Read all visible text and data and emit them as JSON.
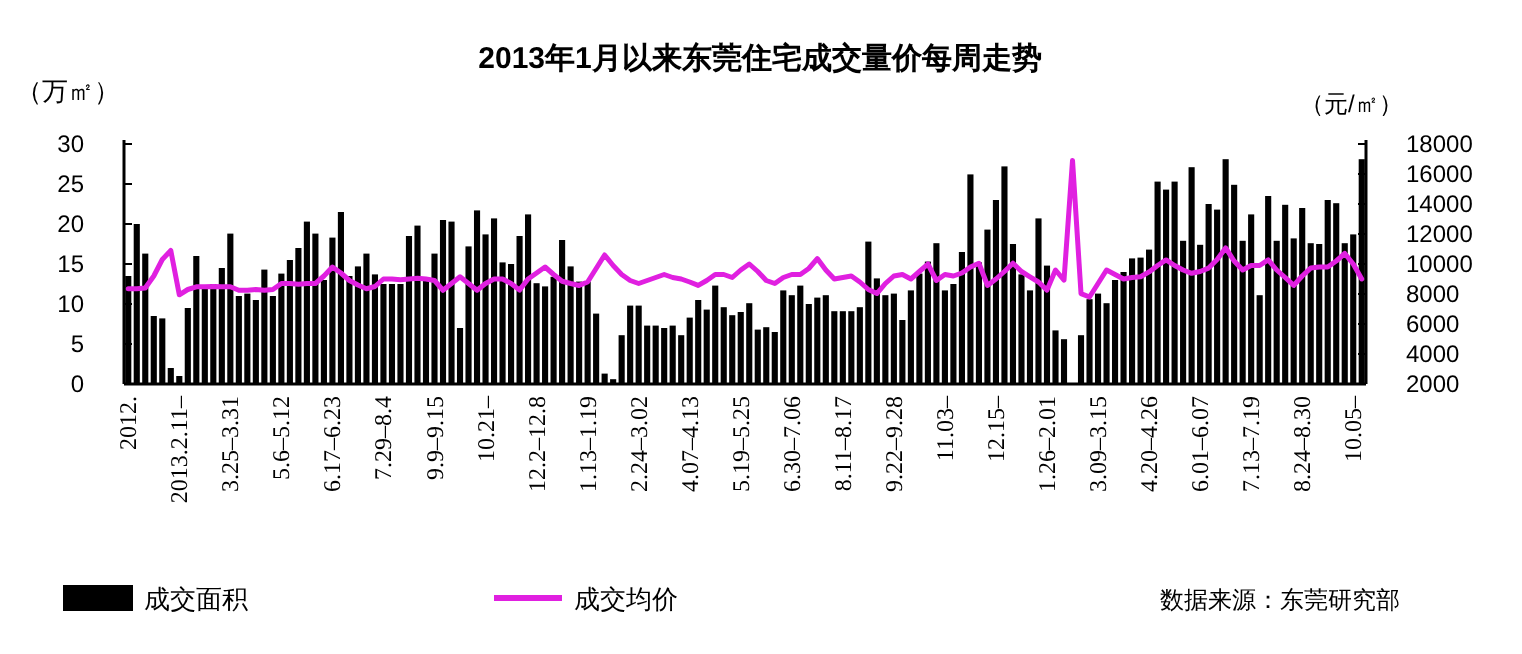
{
  "chart_data": {
    "type": "bar",
    "title": "2013年1月以来东莞住宅成交量价每周走势",
    "ylabel": "（万㎡）",
    "y2label": "（元/㎡）",
    "categories": [
      "2012.",
      null,
      null,
      null,
      null,
      null,
      "2013.2.11–",
      null,
      null,
      null,
      null,
      null,
      "3.25–3.31",
      null,
      null,
      null,
      null,
      null,
      "5.6–5.12",
      null,
      null,
      null,
      null,
      null,
      "6.17–6.23",
      null,
      null,
      null,
      null,
      null,
      "7.29–8.4",
      null,
      null,
      null,
      null,
      null,
      "9.9–9.15",
      null,
      null,
      null,
      null,
      null,
      "10.21–",
      null,
      null,
      null,
      null,
      null,
      "12.2–12.8",
      null,
      null,
      null,
      null,
      null,
      "1.13–1.19",
      null,
      null,
      null,
      null,
      null,
      "2.24–3.02",
      null,
      null,
      null,
      null,
      null,
      "4.07–4.13",
      null,
      null,
      null,
      null,
      null,
      "5.19–5.25",
      null,
      null,
      null,
      null,
      null,
      "6.30–7.06",
      null,
      null,
      null,
      null,
      null,
      "8.11–8.17",
      null,
      null,
      null,
      null,
      null,
      "9.22–9.28",
      null,
      null,
      null,
      null,
      null,
      "11.03–",
      null,
      null,
      null,
      null,
      null,
      "12.15–",
      null,
      null,
      null,
      null,
      null,
      "1.26–2.01",
      null,
      null,
      null,
      null,
      null,
      "3.09–3.15",
      null,
      null,
      null,
      null,
      null,
      "4.20–4.26",
      null,
      null,
      null,
      null,
      null,
      "6.01–6.07",
      null,
      null,
      null,
      null,
      null,
      "7.13–7.19",
      null,
      null,
      null,
      null,
      null,
      "8.24–8.30",
      null,
      null,
      null,
      null,
      null,
      "10.05–",
      null
    ],
    "series": [
      {
        "name": "成交面积",
        "color": "#000000",
        "values": [
          13.5,
          20,
          16.3,
          8.5,
          8.2,
          2,
          1,
          9.5,
          16,
          12,
          12.5,
          14.5,
          18.8,
          11,
          11.3,
          10.5,
          14.3,
          11,
          13.8,
          15.5,
          17,
          20.3,
          18.8,
          13,
          18.3,
          21.5,
          13.5,
          14.7,
          16.3,
          13.7,
          12.5,
          12.5,
          12.5,
          18.5,
          19.8,
          13,
          16.3,
          20.5,
          20.3,
          7,
          17.2,
          21.7,
          18.7,
          20.7,
          15.2,
          15,
          18.5,
          21.2,
          12.6,
          12.2,
          13.4,
          18,
          14.7,
          12.8,
          12.8,
          8.8,
          1.3,
          0.6,
          6.1,
          9.8,
          9.8,
          7.3,
          7.3,
          7,
          7.3,
          6.1,
          8.3,
          10.5,
          9.3,
          12.3,
          9.6,
          8.6,
          9,
          10.1,
          6.8,
          7.1,
          6.5,
          11.7,
          11.1,
          12.3,
          10,
          10.8,
          11.1,
          9.1,
          9.1,
          9.1,
          9.6,
          17.8,
          13.2,
          11.1,
          11.3,
          8,
          11.7,
          13.8,
          15.3,
          17.6,
          11.7,
          12.5,
          16.5,
          26.2,
          15.2,
          19.3,
          23,
          27.2,
          17.5,
          13.7,
          11.7,
          20.7,
          14.8,
          6.7,
          5.6,
          null,
          6.1,
          10.6,
          11.3,
          10.1,
          13,
          14,
          15.7,
          15.8,
          16.8,
          25.3,
          24.3,
          25.3,
          17.9,
          27.1,
          17.4,
          22.5,
          21.8,
          28.1,
          24.9,
          17.9,
          21.2,
          11.1,
          23.5,
          17.9,
          22.4,
          18.2,
          22,
          17.6,
          17.5,
          23,
          22.6,
          17.6,
          18.7,
          28.1
        ]
      },
      {
        "name": "成交均价",
        "type": "line",
        "axis": "y2",
        "color": "#e020e0",
        "values": [
          8350,
          8350,
          8400,
          9200,
          10300,
          10900,
          7950,
          8300,
          8480,
          8480,
          8500,
          8480,
          8480,
          8250,
          8250,
          8300,
          8250,
          8300,
          8700,
          8700,
          8650,
          8700,
          8700,
          9200,
          9800,
          9400,
          8900,
          8600,
          8350,
          8500,
          9000,
          9000,
          8950,
          9000,
          9050,
          9000,
          8900,
          8250,
          8700,
          9150,
          8700,
          8250,
          8700,
          9000,
          9000,
          8700,
          8260,
          9000,
          9400,
          9800,
          9300,
          8850,
          8700,
          8570,
          8800,
          9700,
          10600,
          9900,
          9300,
          8900,
          8700,
          8900,
          9100,
          9300,
          9100,
          9000,
          8800,
          8570,
          8900,
          9300,
          9300,
          9100,
          9600,
          10000,
          9500,
          8900,
          8700,
          9100,
          9300,
          9300,
          9700,
          10360,
          9600,
          9000,
          9100,
          9200,
          8800,
          8300,
          8030,
          8700,
          9200,
          9300,
          9000,
          9500,
          10000,
          8900,
          9300,
          9200,
          9400,
          9800,
          10050,
          8570,
          9000,
          9500,
          10050,
          9500,
          9150,
          8800,
          8260,
          9600,
          8930,
          16900,
          8030,
          7800,
          8700,
          9600,
          9300,
          9000,
          9100,
          9150,
          9470,
          9900,
          10270,
          9900,
          9600,
          9380,
          9500,
          9730,
          10300,
          11070,
          10200,
          9600,
          9900,
          9900,
          10270,
          9600,
          9100,
          8570,
          9200,
          9730,
          9800,
          9800,
          10200,
          10700,
          10000,
          9000
        ]
      }
    ],
    "ylim": [
      0,
      30
    ],
    "yticks": [
      0,
      5,
      10,
      15,
      20,
      25,
      30
    ],
    "y2lim": [
      2000,
      18000
    ],
    "y2ticks": [
      2000,
      4000,
      6000,
      8000,
      10000,
      12000,
      14000,
      16000,
      18000
    ],
    "legend": "bottom",
    "grid": false,
    "annotations": [
      "数据来源：东莞研究部"
    ]
  }
}
